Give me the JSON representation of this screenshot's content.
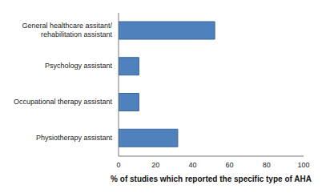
{
  "chart_data": {
    "type": "bar",
    "orientation": "horizontal",
    "categories": [
      "General healthcare assitant/rehabilitation assistant",
      "Psychology assistant",
      "Occupational therapy assistant",
      "Physiotherapy assistant"
    ],
    "values": [
      52,
      11,
      11,
      32
    ],
    "color": "#4f81bd",
    "x_label": "% of studies which reported the specific type of AHA",
    "xlim": [
      0,
      100
    ],
    "xticks": [
      0,
      20,
      40,
      60,
      80,
      100
    ],
    "grid": false
  }
}
